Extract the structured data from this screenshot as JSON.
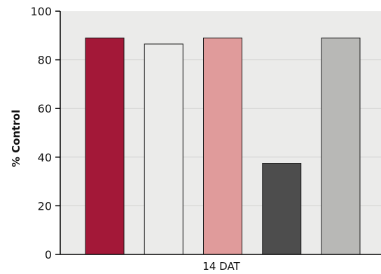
{
  "chart_data": {
    "type": "bar",
    "categories": [
      "14 DAT"
    ],
    "series": [
      {
        "values": [
          89
        ],
        "color": "#a31838"
      },
      {
        "values": [
          86.5
        ],
        "color": "#ebebea"
      },
      {
        "values": [
          89
        ],
        "color": "#e09b9b"
      },
      {
        "values": [
          37.5
        ],
        "color": "#4d4d4d"
      },
      {
        "values": [
          89
        ],
        "color": "#b8b8b6"
      }
    ],
    "ylabel": "% Control",
    "xlabel": "",
    "ylim": [
      0,
      100
    ],
    "yticks": [
      "0",
      "20",
      "40",
      "60",
      "80",
      "100"
    ],
    "grid": true,
    "legend": "none",
    "plot_background": "#ebebea"
  }
}
